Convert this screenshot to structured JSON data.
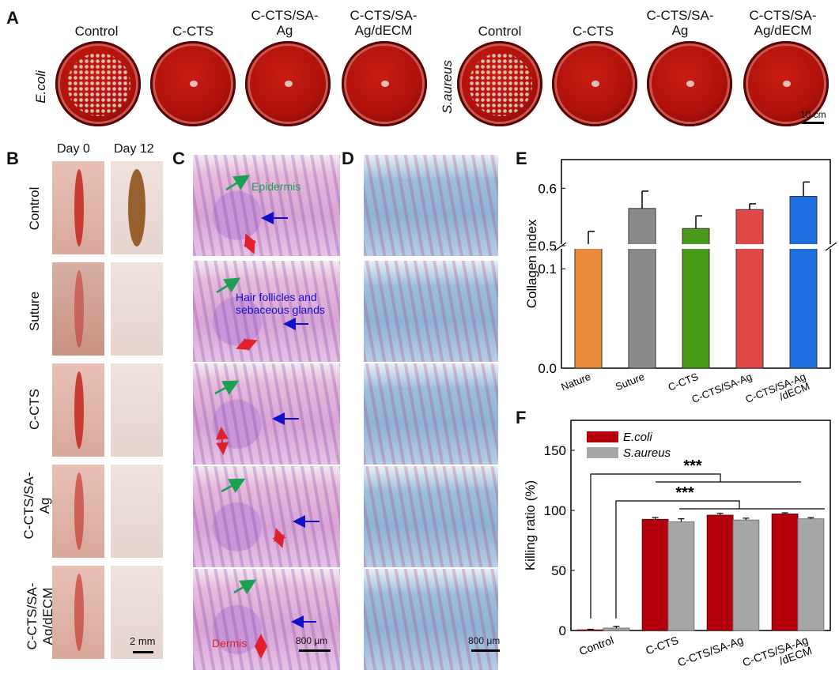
{
  "panels": {
    "A": "A",
    "B": "B",
    "C": "C",
    "D": "D",
    "E": "E",
    "F": "F"
  },
  "panelA": {
    "groups": [
      "Control",
      "C-CTS",
      "C-CTS/SA-\nAg",
      "C-CTS/SA-\nAg/dECM"
    ],
    "bacteria": [
      "E.coli",
      "S.aureus"
    ],
    "scalebar": "10 cm"
  },
  "panelB": {
    "days": [
      "Day 0",
      "Day 12"
    ],
    "rows": [
      "Control",
      "Suture",
      "C-CTS",
      "C-CTS/SA-\nAg",
      "C-CTS/SA-\nAg/dECM"
    ],
    "scalebar": "2 mm"
  },
  "panelC": {
    "epidermis": "Epidermis",
    "hair": "Hair follicles and\nsebaceous glands",
    "dermis": "Dermis",
    "scalebar": "800 μm"
  },
  "panelD": {
    "scalebar": "800 μm"
  },
  "colors": {
    "ecoli": "#b3000c",
    "saureus": "#a6a6a6",
    "green_arrow": "#1aa050",
    "blue_arrow": "#1010c8",
    "red_arrow": "#e0202a"
  },
  "chart_data": [
    {
      "type": "bar",
      "ylabel": "Collagen  index",
      "categories": [
        "Nature",
        "Suture",
        "C-CTS",
        "C-CTS/SA-Ag",
        "C-CTS/SA-Ag\n/dECM"
      ],
      "values": [
        0.5,
        0.565,
        0.53,
        0.563,
        0.586
      ],
      "errors": [
        0.025,
        0.03,
        0.022,
        0.01,
        0.025
      ],
      "colors": [
        "#e88a3a",
        "#8a8a8a",
        "#4a9a1a",
        "#e04848",
        "#1e6fe0"
      ],
      "ylim": [
        0,
        0.65
      ],
      "axis_break": [
        0.12,
        0.5
      ],
      "yticks": [
        "0.0",
        "0.1",
        "0.5",
        "0.6"
      ],
      "ytick_values": [
        0,
        0.1,
        0.5,
        0.6
      ]
    },
    {
      "type": "bar",
      "ylabel": "Killing  ratio (%)",
      "categories": [
        "Control",
        "C-CTS",
        "C-CTS/SA-Ag",
        "C-CTS/SA-Ag\n/dECM"
      ],
      "series": [
        {
          "name": "E.coli",
          "values": [
            0.5,
            92.5,
            96,
            97
          ],
          "errors": [
            0.5,
            1.5,
            1.5,
            1
          ]
        },
        {
          "name": "S.aureus",
          "values": [
            2,
            90.5,
            92,
            93
          ],
          "errors": [
            1.5,
            2.5,
            1.5,
            1
          ]
        }
      ],
      "ylim": [
        0,
        175
      ],
      "yticks": [
        "0",
        "50",
        "100",
        "150"
      ],
      "ytick_values": [
        0,
        50,
        100,
        150
      ],
      "significance": [
        "***",
        "***"
      ]
    }
  ]
}
